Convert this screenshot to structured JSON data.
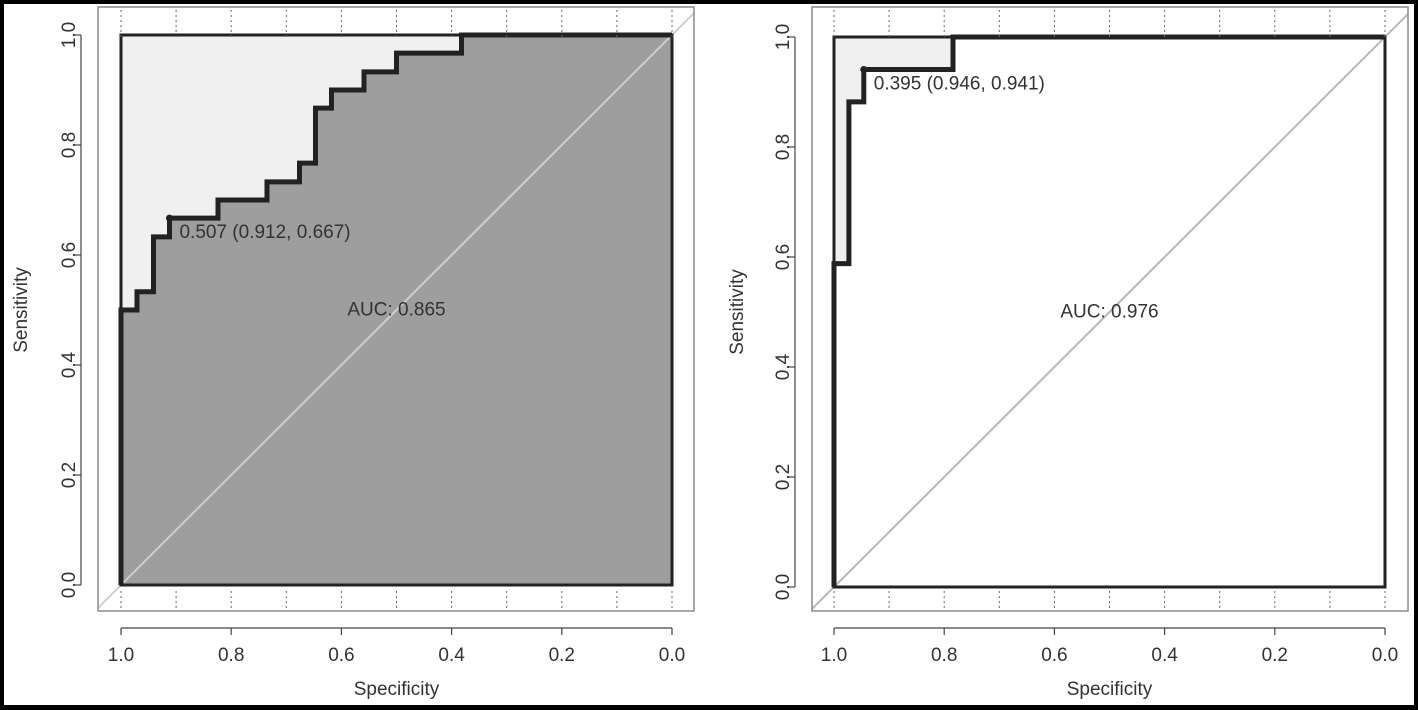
{
  "chart_data": [
    {
      "type": "line",
      "panel": "left",
      "xlabel": "Specificity",
      "ylabel": "Sensitivity",
      "xlim": [
        1.0,
        0.0
      ],
      "ylim": [
        0.0,
        1.0
      ],
      "x_ticks": [
        "1.0",
        "0.8",
        "0.6",
        "0.4",
        "0.2",
        "0.0"
      ],
      "y_ticks": [
        "0.0",
        "0.2",
        "0.4",
        "0.6",
        "0.8",
        "1.0"
      ],
      "auc_shaded": true,
      "auc_label": "AUC: 0.865",
      "auc_label_pos": {
        "specificity": 0.5,
        "sensitivity": 0.49
      },
      "threshold": {
        "specificity": 0.912,
        "sensitivity": 0.667,
        "label": "0.507 (0.912, 0.667)"
      },
      "colors": {
        "auc_fill": "#9e9e9e",
        "partial_fill": "#f0f0f0",
        "curve": "#222222",
        "diagonal": "#cfcfcf"
      },
      "curve": [
        [
          1.0,
          0.0
        ],
        [
          1.0,
          0.5
        ],
        [
          0.971,
          0.5
        ],
        [
          0.971,
          0.533
        ],
        [
          0.941,
          0.533
        ],
        [
          0.941,
          0.633
        ],
        [
          0.912,
          0.633
        ],
        [
          0.912,
          0.667
        ],
        [
          0.824,
          0.667
        ],
        [
          0.824,
          0.7
        ],
        [
          0.735,
          0.7
        ],
        [
          0.735,
          0.733
        ],
        [
          0.676,
          0.733
        ],
        [
          0.676,
          0.767
        ],
        [
          0.647,
          0.767
        ],
        [
          0.647,
          0.867
        ],
        [
          0.618,
          0.867
        ],
        [
          0.618,
          0.9
        ],
        [
          0.559,
          0.9
        ],
        [
          0.559,
          0.933
        ],
        [
          0.5,
          0.933
        ],
        [
          0.5,
          0.967
        ],
        [
          0.382,
          0.967
        ],
        [
          0.382,
          1.0
        ],
        [
          0.0,
          1.0
        ]
      ]
    },
    {
      "type": "line",
      "panel": "right",
      "xlabel": "Specificity",
      "ylabel": "Sensitivity",
      "xlim": [
        1.0,
        0.0
      ],
      "ylim": [
        0.0,
        1.0
      ],
      "x_ticks": [
        "1.0",
        "0.8",
        "0.6",
        "0.4",
        "0.2",
        "0.0"
      ],
      "y_ticks": [
        "0.0",
        "0.2",
        "0.4",
        "0.6",
        "0.8",
        "1.0"
      ],
      "auc_shaded": false,
      "auc_label": "AUC: 0.976",
      "auc_label_pos": {
        "specificity": 0.5,
        "sensitivity": 0.49
      },
      "threshold": {
        "specificity": 0.946,
        "sensitivity": 0.941,
        "label": "0.395 (0.946, 0.941)"
      },
      "colors": {
        "auc_fill": "#ffffff",
        "partial_fill": "#f0f0f0",
        "curve": "#222222",
        "diagonal": "#b8b8b8"
      },
      "curve": [
        [
          1.0,
          0.0
        ],
        [
          1.0,
          0.588
        ],
        [
          0.973,
          0.588
        ],
        [
          0.973,
          0.882
        ],
        [
          0.946,
          0.882
        ],
        [
          0.946,
          0.941
        ],
        [
          0.784,
          0.941
        ],
        [
          0.784,
          1.0
        ],
        [
          0.0,
          1.0
        ]
      ]
    }
  ]
}
